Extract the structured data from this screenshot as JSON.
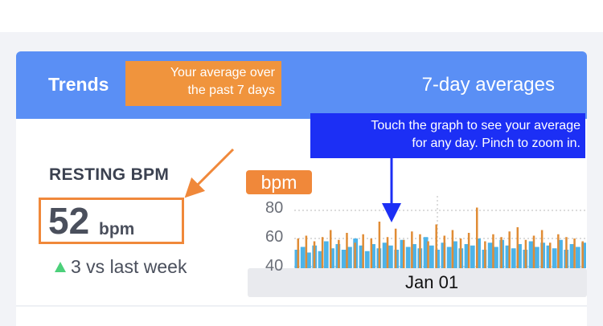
{
  "card": {
    "title": "Trends",
    "subtitle": "7-day averages"
  },
  "metric": {
    "label": "RESTING BPM",
    "value": "52",
    "unit": "bpm",
    "delta_text": "3 vs last week"
  },
  "chart": {
    "unit_pill": "bpm",
    "yticks": [
      "80",
      "60",
      "40"
    ],
    "date_label": "Jan 01"
  },
  "tooltips": {
    "average_line1": "Your average over",
    "average_line2": "the past 7 days",
    "touch_line1": "Touch the graph to see your average",
    "touch_line2": "for any day. Pinch to zoom in."
  },
  "colors": {
    "header": "#5a8ff5",
    "accent": "#f0883a",
    "bar_blue": "#4db3e8",
    "bar_orange": "#e08c35",
    "positive": "#4cd07a",
    "callout_blue": "#1c2ff5"
  },
  "chart_data": {
    "type": "bar",
    "ylim": [
      40,
      80
    ],
    "yticks": [
      80,
      60,
      40
    ],
    "xtick_labels": [
      "Jan 01"
    ],
    "series": [
      {
        "values": [
          52,
          54,
          50,
          55,
          51,
          58,
          53,
          56,
          52,
          54,
          60,
          55,
          51,
          56,
          53,
          57,
          55,
          52,
          59,
          54,
          56,
          53,
          61,
          55,
          52,
          57,
          54,
          58,
          53,
          56,
          55,
          60,
          52,
          57,
          54,
          59,
          55,
          53,
          56,
          52,
          58,
          54,
          57,
          55,
          53,
          59,
          52,
          56,
          54,
          57
        ]
      },
      {
        "values": [
          60,
          62,
          58,
          61,
          66,
          59,
          64,
          57,
          63,
          60,
          72,
          61,
          67,
          59,
          65,
          63,
          58,
          70,
          62,
          66,
          60,
          64,
          82,
          58,
          63,
          61,
          65,
          68,
          59,
          62,
          66,
          57,
          63,
          61,
          60,
          58
        ]
      }
    ]
  }
}
